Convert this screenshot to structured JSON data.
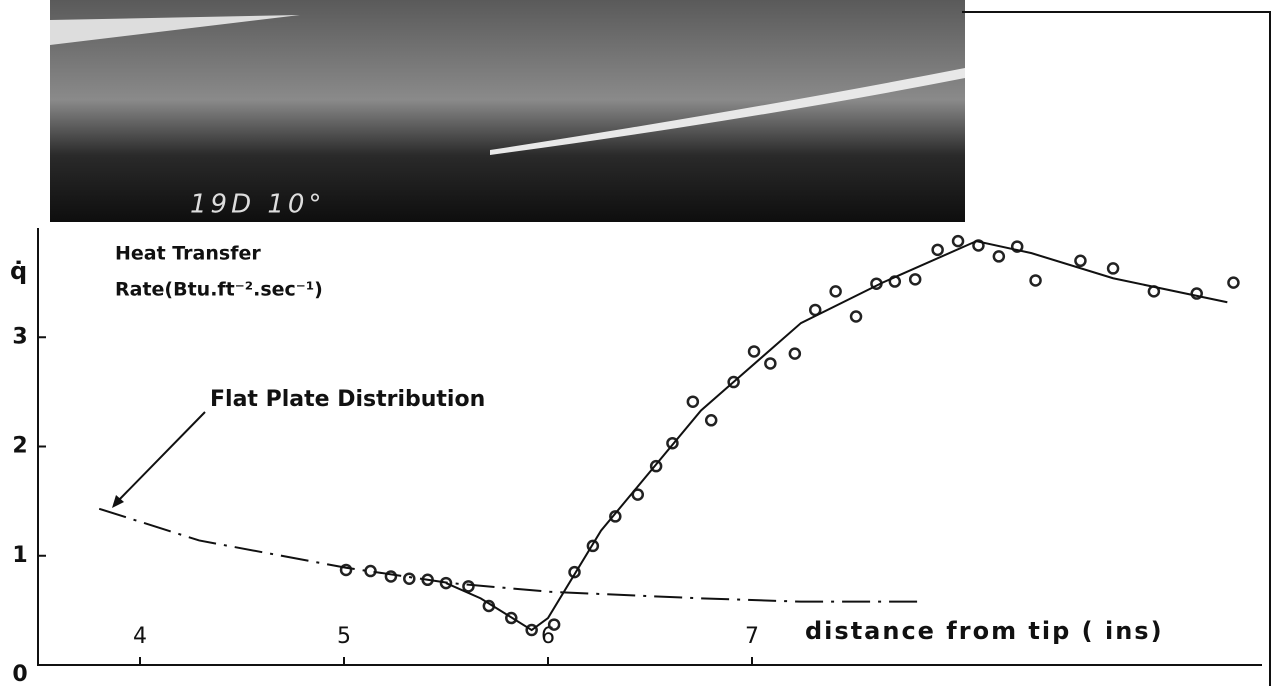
{
  "chart_data": {
    "type": "scatter",
    "photo_label": "19D  10°",
    "ylabel": "q̇",
    "ylabel_line1": "Heat Transfer",
    "ylabel_line2": "Rate(Btu.ft⁻².sec⁻¹)",
    "xlabel": "distance from tip ( ins)",
    "annotation": "Flat Plate  Distribution",
    "xlim": [
      3.5,
      9.5
    ],
    "ylim": [
      0,
      4
    ],
    "xticks": [
      4,
      5,
      6,
      7
    ],
    "yticks": [
      0,
      1,
      2,
      3
    ],
    "series": [
      {
        "type": "scatter",
        "color": "#222",
        "x": [
          5.01,
          5.13,
          5.23,
          5.32,
          5.41,
          5.5,
          5.61,
          5.71,
          5.82,
          5.92,
          6.03,
          6.13,
          6.22,
          6.33,
          6.44,
          6.53,
          6.61,
          6.71,
          6.8,
          6.91,
          7.01,
          7.09,
          7.21,
          7.31,
          7.41,
          7.51,
          7.61,
          7.7,
          7.8,
          7.91,
          8.01,
          8.11,
          8.21,
          8.3,
          8.39,
          8.61,
          8.77,
          8.97,
          9.18,
          9.36
        ],
        "values": [
          0.87,
          0.86,
          0.81,
          0.79,
          0.78,
          0.75,
          0.72,
          0.54,
          0.43,
          0.32,
          0.37,
          0.85,
          1.09,
          1.36,
          1.56,
          1.82,
          2.03,
          2.41,
          2.24,
          2.59,
          2.87,
          2.76,
          2.85,
          3.25,
          3.42,
          3.19,
          3.49,
          3.51,
          3.53,
          3.8,
          3.88,
          3.84,
          3.74,
          3.83,
          3.52,
          3.7,
          3.63,
          3.42,
          3.4,
          3.5
        ]
      },
      {
        "type": "line",
        "style": "solid",
        "color": "#111",
        "x": [
          5.5,
          5.67,
          5.92,
          6.0,
          6.26,
          6.75,
          7.24,
          7.64,
          8.1,
          8.37,
          8.77,
          9.33
        ],
        "values": [
          0.75,
          0.61,
          0.32,
          0.43,
          1.23,
          2.33,
          3.13,
          3.5,
          3.88,
          3.77,
          3.54,
          3.32
        ]
      },
      {
        "type": "line",
        "style": "dashdot",
        "color": "#111",
        "x": [
          3.8,
          4.29,
          5.01,
          5.52,
          6.01,
          6.75,
          7.24,
          7.82
        ],
        "values": [
          1.43,
          1.14,
          0.89,
          0.75,
          0.67,
          0.61,
          0.58,
          0.58
        ]
      }
    ]
  }
}
